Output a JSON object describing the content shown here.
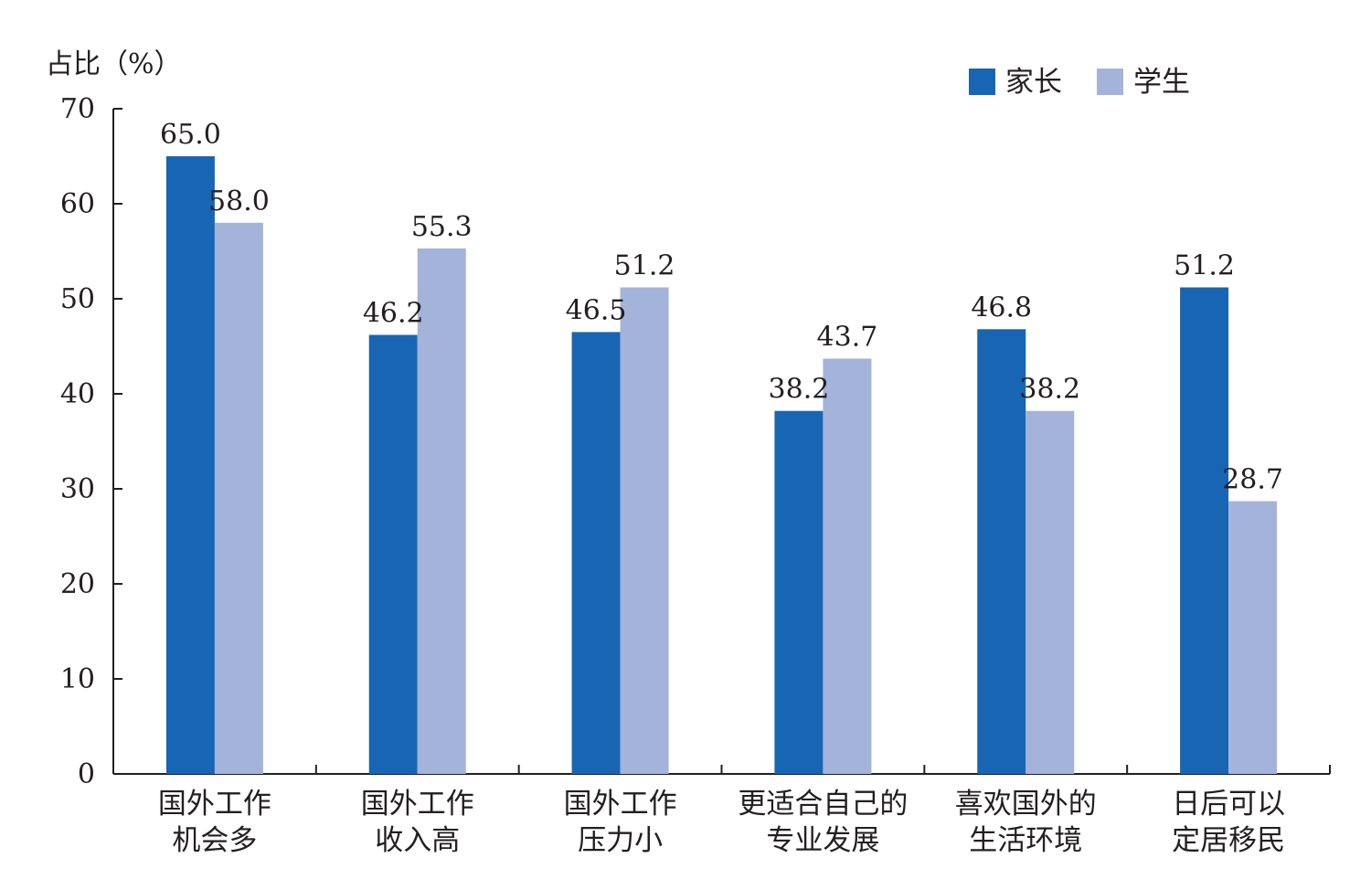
{
  "chart_data": {
    "type": "bar",
    "ylabel": "占比（%）",
    "xlabel": "",
    "ylim": [
      0,
      70
    ],
    "yticks": [
      0,
      10,
      20,
      30,
      40,
      50,
      60,
      70
    ],
    "grid": false,
    "legend_position": "top-right",
    "categories": [
      [
        "国外工作",
        "机会多"
      ],
      [
        "国外工作",
        "收入高"
      ],
      [
        "国外工作",
        "压力小"
      ],
      [
        "更适合自己的",
        "专业发展"
      ],
      [
        "喜欢国外的",
        "生活环境"
      ],
      [
        "日后可以",
        "定居移民"
      ]
    ],
    "series": [
      {
        "name": "家长",
        "color": "#1865b4",
        "values": [
          65.0,
          46.2,
          46.5,
          38.2,
          46.8,
          51.2
        ],
        "labels": [
          "65.0",
          "46.2",
          "46.5",
          "38.2",
          "46.8",
          "51.2"
        ]
      },
      {
        "name": "学生",
        "color": "#a3b3da",
        "values": [
          58.0,
          55.3,
          51.2,
          43.7,
          38.2,
          28.7
        ],
        "labels": [
          "58.0",
          "55.3",
          "51.2",
          "43.7",
          "38.2",
          "28.7"
        ]
      }
    ]
  }
}
